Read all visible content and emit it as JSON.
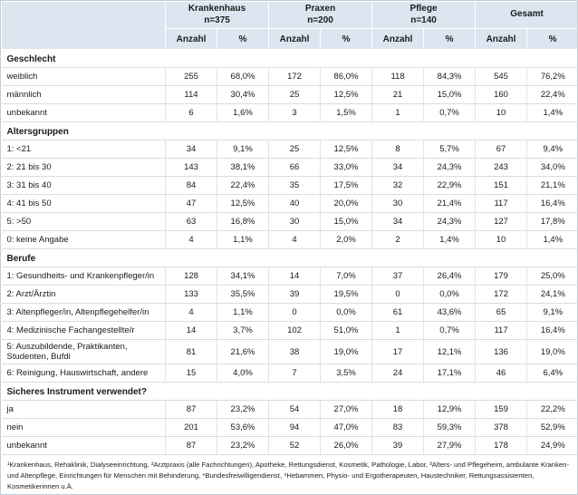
{
  "table": {
    "groups": [
      {
        "label": "Krankenhaus",
        "n": "n=375"
      },
      {
        "label": "Praxen",
        "n": "n=200"
      },
      {
        "label": "Pflege",
        "n": "n=140"
      },
      {
        "label": "Gesamt",
        "n": ""
      }
    ],
    "sub_headers": {
      "count": "Anzahl",
      "pct": "%"
    },
    "sections": [
      {
        "title": "Geschlecht",
        "rows": [
          {
            "label": "weiblich",
            "values": [
              "255",
              "68,0%",
              "172",
              "86,0%",
              "118",
              "84,3%",
              "545",
              "76,2%"
            ]
          },
          {
            "label": "männlich",
            "values": [
              "114",
              "30,4%",
              "25",
              "12,5%",
              "21",
              "15,0%",
              "160",
              "22,4%"
            ]
          },
          {
            "label": "unbekannt",
            "values": [
              "6",
              "1,6%",
              "3",
              "1,5%",
              "1",
              "0,7%",
              "10",
              "1,4%"
            ]
          }
        ]
      },
      {
        "title": "Altersgruppen",
        "rows": [
          {
            "label": "1: <21",
            "values": [
              "34",
              "9,1%",
              "25",
              "12,5%",
              "8",
              "5,7%",
              "67",
              "9,4%"
            ]
          },
          {
            "label": "2: 21 bis 30",
            "values": [
              "143",
              "38,1%",
              "66",
              "33,0%",
              "34",
              "24,3%",
              "243",
              "34,0%"
            ]
          },
          {
            "label": "3: 31 bis 40",
            "values": [
              "84",
              "22,4%",
              "35",
              "17,5%",
              "32",
              "22,9%",
              "151",
              "21,1%"
            ]
          },
          {
            "label": "4: 41 bis 50",
            "values": [
              "47",
              "12,5%",
              "40",
              "20,0%",
              "30",
              "21,4%",
              "117",
              "16,4%"
            ]
          },
          {
            "label": "5: >50",
            "values": [
              "63",
              "16,8%",
              "30",
              "15,0%",
              "34",
              "24,3%",
              "127",
              "17,8%"
            ]
          },
          {
            "label": "0: keine Angabe",
            "values": [
              "4",
              "1,1%",
              "4",
              "2,0%",
              "2",
              "1,4%",
              "10",
              "1,4%"
            ]
          }
        ]
      },
      {
        "title": "Berufe",
        "rows": [
          {
            "label": "1: Gesundheits- und Krankenpfleger/in",
            "values": [
              "128",
              "34,1%",
              "14",
              "7,0%",
              "37",
              "26,4%",
              "179",
              "25,0%"
            ]
          },
          {
            "label": "2: Arzt/Ärztin",
            "values": [
              "133",
              "35,5%",
              "39",
              "19,5%",
              "0",
              "0,0%",
              "172",
              "24,1%"
            ]
          },
          {
            "label": "3: Altenpfleger/in, Altenpflegehelfer/in",
            "values": [
              "4",
              "1,1%",
              "0",
              "0,0%",
              "61",
              "43,6%",
              "65",
              "9,1%"
            ]
          },
          {
            "label": "4: Medizinische Fachangestellte/r",
            "values": [
              "14",
              "3,7%",
              "102",
              "51,0%",
              "1",
              "0,7%",
              "117",
              "16,4%"
            ]
          },
          {
            "label": "5: Auszubildende, Praktikanten, Studenten, Bufdi",
            "values": [
              "81",
              "21,6%",
              "38",
              "19,0%",
              "17",
              "12,1%",
              "136",
              "19,0%"
            ]
          },
          {
            "label": "6: Reinigung, Hauswirtschaft, andere",
            "values": [
              "15",
              "4,0%",
              "7",
              "3,5%",
              "24",
              "17,1%",
              "46",
              "6,4%"
            ]
          }
        ]
      },
      {
        "title": "Sicheres Instrument verwendet?",
        "rows": [
          {
            "label": "ja",
            "values": [
              "87",
              "23,2%",
              "54",
              "27,0%",
              "18",
              "12,9%",
              "159",
              "22,2%"
            ]
          },
          {
            "label": "nein",
            "values": [
              "201",
              "53,6%",
              "94",
              "47,0%",
              "83",
              "59,3%",
              "378",
              "52,9%"
            ]
          },
          {
            "label": "unbekannt",
            "values": [
              "87",
              "23,2%",
              "52",
              "26,0%",
              "39",
              "27,9%",
              "178",
              "24,9%"
            ]
          }
        ]
      }
    ],
    "footnote": "¹Krankenhaus, Rehaklinik, Dialyseeinrichtung, ²Arztpraxis (alle Fachrichtungen), Apotheke, Rettungsdienst, Kosmetik, Pathologie, Labor, ³Alters- und Pflegeheim, ambulante Kranken- und Altenpflege, Einrichtungen für Menschen mit Behinderung, *Bundesfreiwilligendienst, ⁴Hebammen, Physio- und Ergotherapeuten, Haustechniker, Rettungsassistenten, Kosmetikerinnen u.Ä."
  },
  "colors": {
    "header_bg": "#dce6f1",
    "row_border": "#dcdcdc",
    "column_border": "#e3e3e3",
    "outer_border": "#c3ccd5",
    "text": "#1a1a1a"
  }
}
